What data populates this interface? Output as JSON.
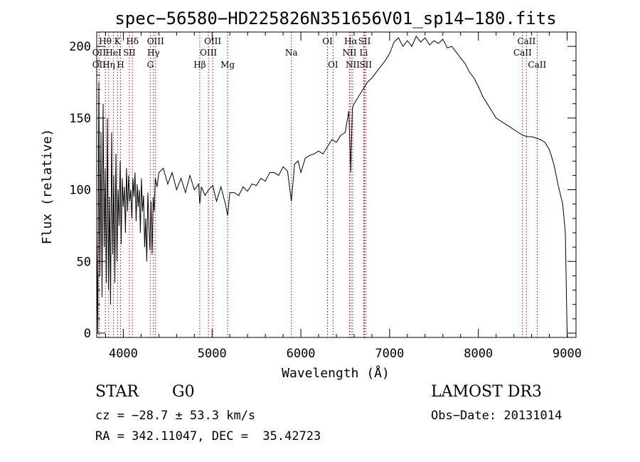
{
  "chart_data": {
    "type": "line",
    "title": "spec−56580−HD225826N351656V01_sp14−180.fits",
    "xlabel": "Wavelength (Å)",
    "ylabel": "Flux (relative)",
    "xlim": [
      3700,
      9100
    ],
    "ylim": [
      -3,
      210
    ],
    "xticks": [
      4000,
      5000,
      6000,
      7000,
      8000,
      9000
    ],
    "yticks": [
      0,
      50,
      100,
      150,
      200
    ],
    "minor_xstep": 200,
    "minor_ystep": 10,
    "line_color": "#000000",
    "marker_color": "#b00000",
    "series": [
      {
        "name": "flux",
        "x": [
          3700,
          3712,
          3724,
          3736,
          3748,
          3760,
          3772,
          3784,
          3796,
          3808,
          3820,
          3832,
          3844,
          3856,
          3868,
          3880,
          3892,
          3904,
          3916,
          3928,
          3940,
          3952,
          3964,
          3976,
          3988,
          4000,
          4012,
          4024,
          4036,
          4048,
          4060,
          4072,
          4084,
          4096,
          4108,
          4120,
          4132,
          4144,
          4156,
          4168,
          4180,
          4192,
          4204,
          4216,
          4228,
          4240,
          4252,
          4264,
          4276,
          4288,
          4300,
          4312,
          4324,
          4336,
          4348,
          4360,
          4380,
          4400,
          4450,
          4500,
          4550,
          4600,
          4650,
          4700,
          4750,
          4800,
          4850,
          4861,
          4880,
          4920,
          4960,
          5007,
          5050,
          5100,
          5150,
          5175,
          5200,
          5250,
          5300,
          5350,
          5400,
          5450,
          5500,
          5550,
          5600,
          5650,
          5700,
          5750,
          5800,
          5850,
          5893,
          5930,
          5970,
          6000,
          6050,
          6100,
          6150,
          6200,
          6250,
          6300,
          6350,
          6400,
          6450,
          6500,
          6540,
          6563,
          6580,
          6600,
          6650,
          6700,
          6750,
          6800,
          6850,
          6900,
          6950,
          7000,
          7050,
          7100,
          7150,
          7200,
          7250,
          7300,
          7350,
          7400,
          7450,
          7500,
          7550,
          7600,
          7650,
          7700,
          7750,
          7800,
          7850,
          7900,
          7950,
          8000,
          8050,
          8100,
          8150,
          8200,
          8250,
          8300,
          8350,
          8400,
          8450,
          8500,
          8550,
          8600,
          8650,
          8700,
          8750,
          8800,
          8850,
          8900,
          8950,
          8980,
          9000,
          9005
        ],
        "y": [
          70,
          0,
          175,
          40,
          140,
          25,
          160,
          60,
          115,
          35,
          150,
          30,
          95,
          20,
          140,
          55,
          110,
          35,
          125,
          50,
          100,
          75,
          120,
          62,
          108,
          88,
          102,
          70,
          115,
          85,
          110,
          92,
          100,
          80,
          108,
          95,
          112,
          78,
          104,
          88,
          100,
          70,
          108,
          85,
          96,
          60,
          80,
          50,
          98,
          75,
          58,
          92,
          55,
          95,
          85,
          108,
          102,
          112,
          115,
          104,
          112,
          100,
          108,
          98,
          110,
          100,
          104,
          90,
          102,
          96,
          100,
          103,
          92,
          102,
          90,
          82,
          98,
          98,
          96,
          102,
          99,
          104,
          103,
          108,
          106,
          112,
          112,
          110,
          116,
          113,
          92,
          118,
          120,
          112,
          122,
          124,
          125,
          127,
          125,
          130,
          135,
          133,
          138,
          140,
          155,
          112,
          157,
          160,
          165,
          170,
          175,
          178,
          182,
          186,
          190,
          195,
          203,
          206,
          200,
          204,
          200,
          207,
          203,
          206,
          201,
          204,
          202,
          205,
          199,
          200,
          196,
          192,
          188,
          182,
          178,
          172,
          165,
          160,
          155,
          150,
          148,
          146,
          144,
          142,
          140,
          138,
          137,
          137,
          136,
          135,
          133,
          128,
          118,
          103,
          90,
          70,
          0,
          -3
        ]
      }
    ],
    "line_markers": [
      {
        "label": "Hθ",
        "x": 3797,
        "row": 1
      },
      {
        "label": "OII",
        "x": 3727,
        "row": 2
      },
      {
        "label": "OII",
        "x": 3727,
        "row": 3
      },
      {
        "label": "Hη",
        "x": 3835,
        "row": 3
      },
      {
        "label": "K",
        "x": 3934,
        "row": 1
      },
      {
        "label": "HeI",
        "x": 3889,
        "row": 2
      },
      {
        "label": "SII",
        "x": 4068,
        "row": 2
      },
      {
        "label": "H",
        "x": 3969,
        "row": 3
      },
      {
        "label": "Hδ",
        "x": 4102,
        "row": 1
      },
      {
        "label": "OIII",
        "x": 4363,
        "row": 1
      },
      {
        "label": "Hγ",
        "x": 4340,
        "row": 2
      },
      {
        "label": "G",
        "x": 4304,
        "row": 3
      },
      {
        "label": "OIII",
        "x": 5007,
        "row": 1
      },
      {
        "label": "OIII",
        "x": 4959,
        "row": 2
      },
      {
        "label": "Hβ",
        "x": 4861,
        "row": 3
      },
      {
        "label": "Mg",
        "x": 5175,
        "row": 3
      },
      {
        "label": "Na",
        "x": 5893,
        "row": 2
      },
      {
        "label": "OI",
        "x": 6300,
        "row": 1
      },
      {
        "label": "OI",
        "x": 6363,
        "row": 3
      },
      {
        "label": "Hα",
        "x": 6563,
        "row": 1
      },
      {
        "label": "SII",
        "x": 6717,
        "row": 1
      },
      {
        "label": "NII",
        "x": 6548,
        "row": 2
      },
      {
        "label": "Li",
        "x": 6708,
        "row": 2
      },
      {
        "label": "NII",
        "x": 6584,
        "row": 3
      },
      {
        "label": "SII",
        "x": 6731,
        "row": 3
      },
      {
        "label": "CaII",
        "x": 8542,
        "row": 1
      },
      {
        "label": "CaII",
        "x": 8498,
        "row": 2
      },
      {
        "label": "CaII",
        "x": 8662,
        "row": 3
      }
    ]
  },
  "info": {
    "object_class": "STAR",
    "subclass": "G0",
    "cz": "cz = −28.7 ± 53.3 km/s",
    "radec": "RA = 342.11047, DEC =  35.42723",
    "survey": "LAMOST DR3",
    "obs_date": "Obs−Date: 20131014"
  }
}
